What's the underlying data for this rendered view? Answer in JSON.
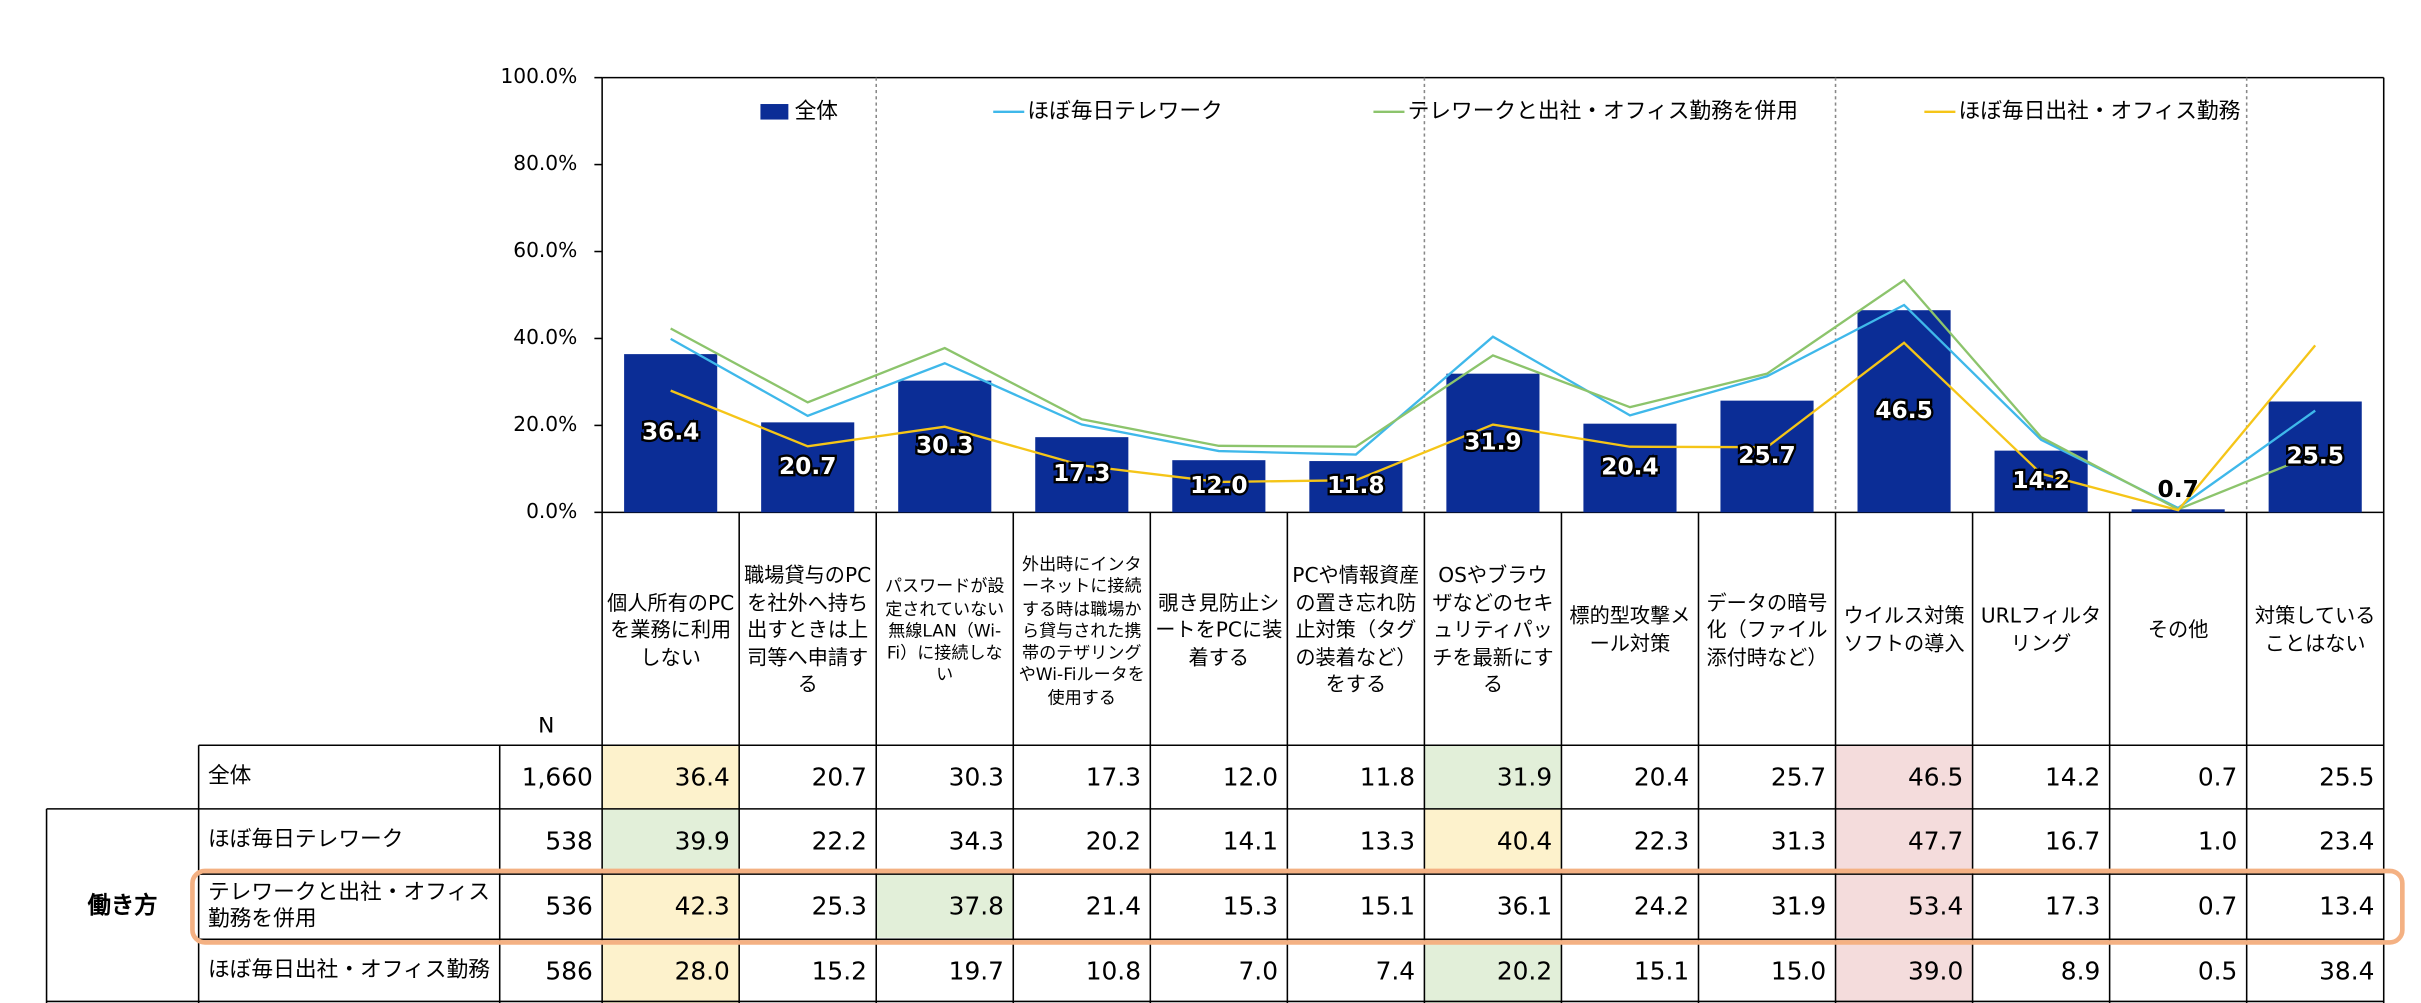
{
  "chart_data": {
    "type": "bar",
    "ylim": [
      0,
      100
    ],
    "yticks": [
      {
        "value": 0,
        "label": "0.0%"
      },
      {
        "value": 20,
        "label": "20.0%"
      },
      {
        "value": 40,
        "label": "40.0%"
      },
      {
        "value": 60,
        "label": "60.0%"
      },
      {
        "value": 80,
        "label": "80.0%"
      },
      {
        "value": 100,
        "label": "100.0%"
      }
    ],
    "categories": [
      "個人所有のPCを業務に利用しない",
      "職場貸与のPCを社外へ持ち出すときは上司等へ申請する",
      "パスワードが設定されていない無線LAN（Wi-Fi）に接続しない",
      "外出時にインターネットに接続する時は職場から貸与された携帯のテザリングやWi-Fiルータを使用する",
      "覗き見防止シートをPCに装着する",
      "PCや情報資産の置き忘れ防止対策（タグの装着など）をする",
      "OSやブラウザなどのセキュリティパッチを最新にする",
      "標的型攻撃メール対策",
      "データの暗号化（ファイル添付時など）",
      "ウイルス対策ソフトの導入",
      "URLフィルタリング",
      "その他",
      "対策していることはない"
    ],
    "n_header": "N",
    "group_label": "働き方",
    "series": [
      {
        "name": "全体",
        "type": "bar",
        "color": "#0b2d96",
        "n": "1,660",
        "values": [
          36.4,
          20.7,
          30.3,
          17.3,
          12.0,
          11.8,
          31.9,
          20.4,
          25.7,
          46.5,
          14.2,
          0.7,
          25.5
        ],
        "value_labels": [
          "36.4",
          "20.7",
          "30.3",
          "17.3",
          "12.0",
          "11.8",
          "31.9",
          "20.4",
          "25.7",
          "46.5",
          "14.2",
          "0.7",
          "25.5"
        ],
        "cell_colors": [
          "#fdf2cc",
          null,
          null,
          null,
          null,
          null,
          "#e2efd9",
          null,
          null,
          "#f4dcdc",
          null,
          null,
          null
        ]
      },
      {
        "name": "ほぼ毎日テレワーク",
        "type": "line",
        "color": "#3fb8ea",
        "n": 538,
        "values": [
          39.9,
          22.2,
          34.3,
          20.2,
          14.1,
          13.3,
          40.4,
          22.3,
          31.3,
          47.7,
          16.7,
          1.0,
          23.4
        ],
        "value_labels": [
          "39.9",
          "22.2",
          "34.3",
          "20.2",
          "14.1",
          "13.3",
          "40.4",
          "22.3",
          "31.3",
          "47.7",
          "16.7",
          "1.0",
          "23.4"
        ],
        "cell_colors": [
          "#e2efd9",
          null,
          null,
          null,
          null,
          null,
          "#fdf2cc",
          null,
          null,
          "#f4dcdc",
          null,
          null,
          null
        ]
      },
      {
        "name": "テレワークと出社・オフィス勤務を併用",
        "type": "line",
        "color": "#8cc46c",
        "n": 536,
        "values": [
          42.3,
          25.3,
          37.8,
          21.4,
          15.3,
          15.1,
          36.1,
          24.2,
          31.9,
          53.4,
          17.3,
          0.7,
          13.4
        ],
        "value_labels": [
          "42.3",
          "25.3",
          "37.8",
          "21.4",
          "15.3",
          "15.1",
          "36.1",
          "24.2",
          "31.9",
          "53.4",
          "17.3",
          "0.7",
          "13.4"
        ],
        "cell_colors": [
          "#fdf2cc",
          null,
          "#e2efd9",
          null,
          null,
          null,
          null,
          null,
          null,
          "#f4dcdc",
          null,
          null,
          null
        ]
      },
      {
        "name": "ほぼ毎日出社・オフィス勤務",
        "type": "line",
        "color": "#f5c518",
        "n": 586,
        "values": [
          28.0,
          15.2,
          19.7,
          10.8,
          7.0,
          7.4,
          20.2,
          15.1,
          15.0,
          39.0,
          8.9,
          0.5,
          38.4
        ],
        "value_labels": [
          "28.0",
          "15.2",
          "19.7",
          "10.8",
          "7.0",
          "7.4",
          "20.2",
          "15.1",
          "15.0",
          "39.0",
          "8.9",
          "0.5",
          "38.4"
        ],
        "cell_colors": [
          "#fdf2cc",
          null,
          null,
          null,
          null,
          null,
          "#e2efd9",
          null,
          null,
          "#f4dcdc",
          null,
          null,
          null
        ]
      }
    ]
  }
}
